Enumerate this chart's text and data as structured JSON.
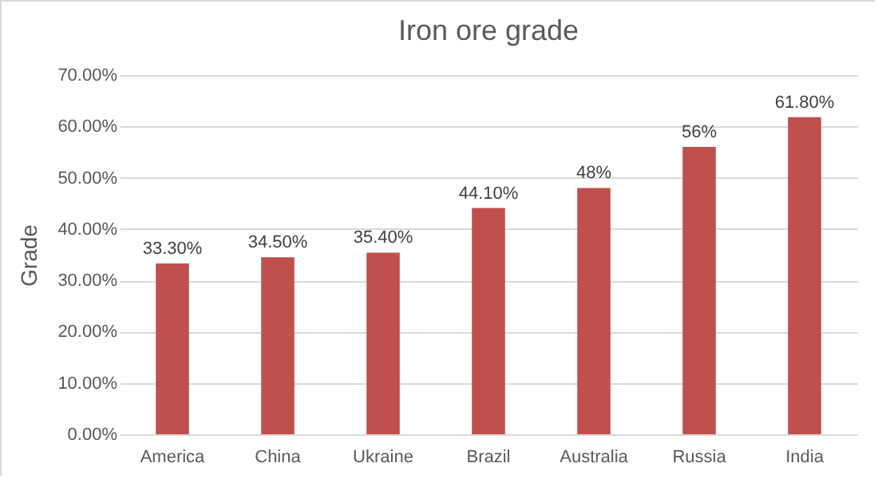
{
  "chart_data": {
    "type": "bar",
    "title": "Iron ore grade",
    "ylabel": "Grade",
    "categories": [
      "America",
      "China",
      "Ukraine",
      "Brazil",
      "Australia",
      "Russia",
      "India"
    ],
    "values": [
      33.3,
      34.5,
      35.4,
      44.1,
      48,
      56,
      61.8
    ],
    "value_labels": [
      "33.30%",
      "34.50%",
      "35.40%",
      "44.10%",
      "48%",
      "56%",
      "61.80%"
    ],
    "color": "#c0504d",
    "ylim": [
      0,
      70
    ],
    "yticks": [
      {
        "value": 0,
        "label": "0.00%"
      },
      {
        "value": 10,
        "label": "10.00%"
      },
      {
        "value": 20,
        "label": "20.00%"
      },
      {
        "value": 30,
        "label": "30.00%"
      },
      {
        "value": 40,
        "label": "40.00%"
      },
      {
        "value": 50,
        "label": "50.00%"
      },
      {
        "value": 60,
        "label": "60.00%"
      },
      {
        "value": 70,
        "label": "70.00%"
      }
    ],
    "grid": "y"
  }
}
